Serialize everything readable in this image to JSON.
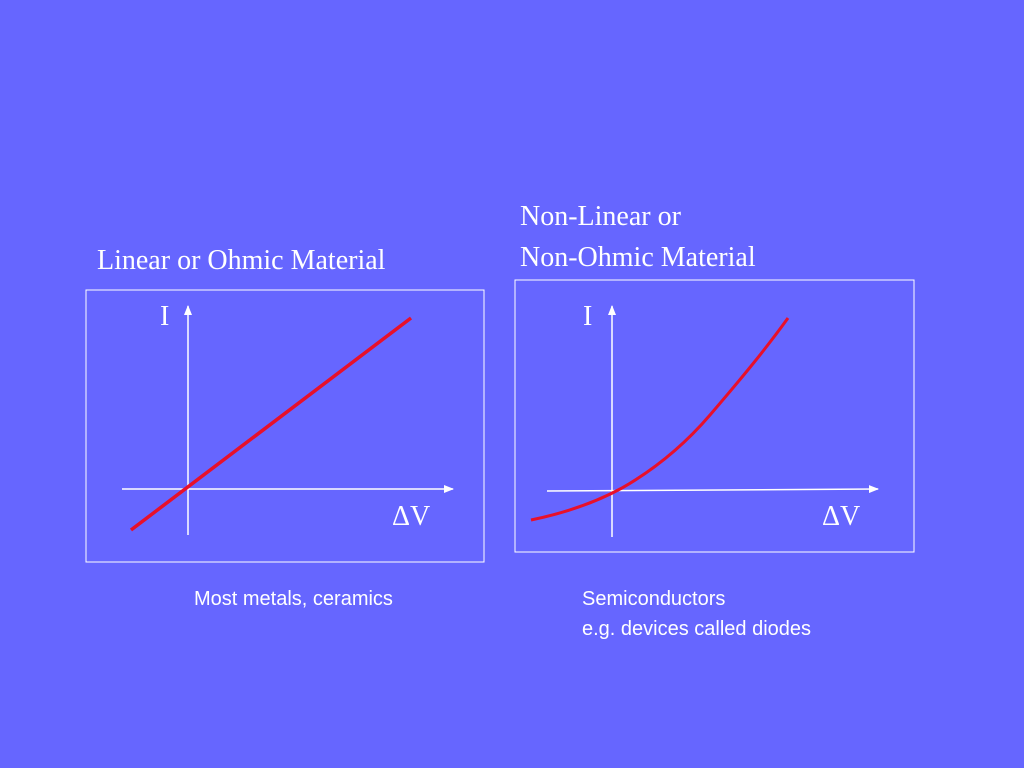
{
  "slide": {
    "background": "#6666ff",
    "foreground": "#ffffff",
    "curve_color": "#e8102a"
  },
  "left_panel": {
    "title": "Linear or Ohmic Material",
    "y_axis_label": "I",
    "x_axis_label": "ΔV",
    "caption": "Most metals, ceramics"
  },
  "right_panel": {
    "title_line1": "Non-Linear or",
    "title_line2": "Non-Ohmic Material",
    "y_axis_label": "I",
    "x_axis_label": "ΔV",
    "caption_line1": "Semiconductors",
    "caption_line2": "e.g. devices called diodes"
  }
}
